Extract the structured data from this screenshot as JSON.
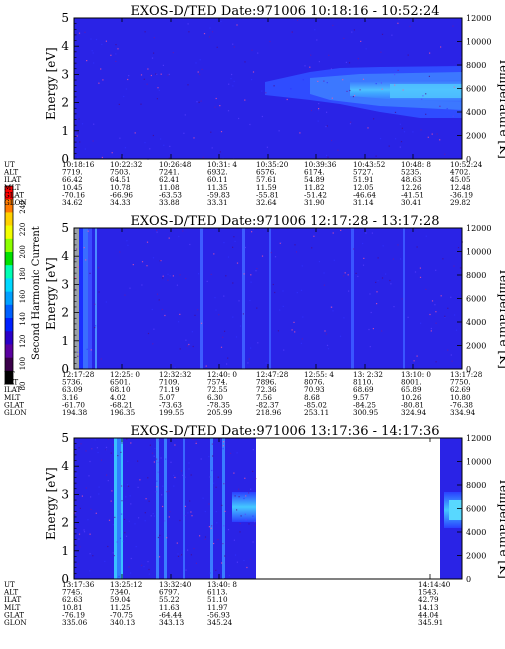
{
  "colorbar": {
    "label": "Second Harmonic Current",
    "ticks": [
      "240",
      "220",
      "200",
      "180",
      "160",
      "140",
      "120",
      "100",
      "80"
    ],
    "colors": [
      "#ff0000",
      "#ff7a00",
      "#ffd200",
      "#f2ff00",
      "#8cff00",
      "#00e000",
      "#00ffb4",
      "#00d8ff",
      "#00a0ff",
      "#0060ff",
      "#0020ff",
      "#2a00c8",
      "#5a00a0",
      "#3a004a",
      "#000000"
    ]
  },
  "chart_data": [
    {
      "type": "heatmap",
      "title": "EXOS-D/TED   Date:971006  10:18:16 - 10:52:24",
      "ylabel": "Energy [eV]",
      "ylabel_right": "Temperature [K]",
      "ylim": [
        0,
        5
      ],
      "yticks": [
        "0",
        "1",
        "2",
        "3",
        "4",
        "5"
      ],
      "ylim_right": [
        0,
        12000
      ],
      "yticks_right": [
        "0",
        "2000",
        "4000",
        "6000",
        "8000",
        "10000",
        "12000"
      ],
      "orbit_table": {
        "row_labels": [
          "UT",
          "ALT",
          "ILAT",
          "MLT",
          "GLAT",
          "GLON"
        ],
        "columns": [
          [
            "10:18:16",
            "7719.",
            "66.42",
            "10.45",
            "-70.16",
            "34.62"
          ],
          [
            "10:22:32",
            "7503.",
            "64.51",
            "10.78",
            "-66.96",
            "34.33"
          ],
          [
            "10:26:48",
            "7241.",
            "62.41",
            "11.08",
            "-63.53",
            "33.88"
          ],
          [
            "10:31: 4",
            "6932.",
            "60.11",
            "11.35",
            "-59.83",
            "33.31"
          ],
          [
            "10:35:20",
            "6576.",
            "57.61",
            "11.59",
            "-55.81",
            "32.64"
          ],
          [
            "10:39:36",
            "6174.",
            "54.89",
            "11.82",
            "-51.42",
            "31.90"
          ],
          [
            "10:43:52",
            "5727.",
            "51.91",
            "12.05",
            "-46.64",
            "31.14"
          ],
          [
            "10:48: 8",
            "5235.",
            "48.63",
            "12.26",
            "-41.51",
            "30.41"
          ],
          [
            "10:52:24",
            "4702.",
            "45.05",
            "12.48",
            "-36.19",
            "29.82"
          ]
        ]
      }
    },
    {
      "type": "heatmap",
      "title": "EXOS-D/TED   Date:971006  12:17:28 - 13:17:28",
      "ylabel": "Energy [eV]",
      "ylabel_right": "Temperature [K]",
      "ylim": [
        0,
        5
      ],
      "yticks": [
        "0",
        "1",
        "2",
        "3",
        "4",
        "5"
      ],
      "ylim_right": [
        0,
        12000
      ],
      "yticks_right": [
        "0",
        "2000",
        "4000",
        "6000",
        "8000",
        "10000",
        "12000"
      ],
      "orbit_table": {
        "row_labels": [
          "UT",
          "ALT",
          "ILAT",
          "MLT",
          "GLAT",
          "GLON"
        ],
        "columns": [
          [
            "12:17:28",
            "5736.",
            "63.09",
            "3.16",
            "-61.70",
            "194.38"
          ],
          [
            "12:25: 0",
            "6501.",
            "68.10",
            "4.02",
            "-68.21",
            "196.35"
          ],
          [
            "12:32:32",
            "7109.",
            "71.19",
            "5.07",
            "-73.63",
            "199.55"
          ],
          [
            "12:40: 0",
            "7574.",
            "72.55",
            "6.30",
            "-78.35",
            "205.99"
          ],
          [
            "12:47:28",
            "7896.",
            "72.36",
            "7.56",
            "-82.37",
            "218.96"
          ],
          [
            "12:55: 4",
            "8076.",
            "70.93",
            "8.68",
            "-85.02",
            "253.11"
          ],
          [
            "13: 2:32",
            "8110.",
            "68.69",
            "9.57",
            "-84.25",
            "300.95"
          ],
          [
            "13:10: 0",
            "8001.",
            "65.89",
            "10.26",
            "-80.81",
            "324.94"
          ],
          [
            "13:17:28",
            "7750.",
            "62.69",
            "10.80",
            "-76.38",
            "334.94"
          ]
        ]
      }
    },
    {
      "type": "heatmap",
      "title": "EXOS-D/TED   Date:971006  13:17:36 - 14:17:36",
      "ylabel": "Energy [eV]",
      "ylabel_right": "Temperature [K]",
      "ylim": [
        0,
        5
      ],
      "yticks": [
        "0",
        "1",
        "2",
        "3",
        "4",
        "5"
      ],
      "ylim_right": [
        0,
        12000
      ],
      "yticks_right": [
        "0",
        "2000",
        "4000",
        "6000",
        "8000",
        "10000",
        "12000"
      ],
      "orbit_table": {
        "row_labels": [
          "UT",
          "ALT",
          "ILAT",
          "MLT",
          "GLAT",
          "GLON"
        ],
        "columns": [
          [
            "13:17:36",
            "7745.",
            "62.63",
            "10.81",
            "-76.19",
            "335.06"
          ],
          [
            "13:25:12",
            "7340.",
            "59.04",
            "11.25",
            "-70.75",
            "340.13"
          ],
          [
            "13:32:40",
            "6797.",
            "55.22",
            "11.63",
            "-64.44",
            "343.13"
          ],
          [
            "13:40: 8",
            "6113.",
            "51.10",
            "11.97",
            "-56.93",
            "345.24"
          ],
          [
            "14:14:40",
            "1543.",
            "42.79",
            "14.13",
            "44.04",
            "345.91"
          ]
        ]
      }
    }
  ]
}
